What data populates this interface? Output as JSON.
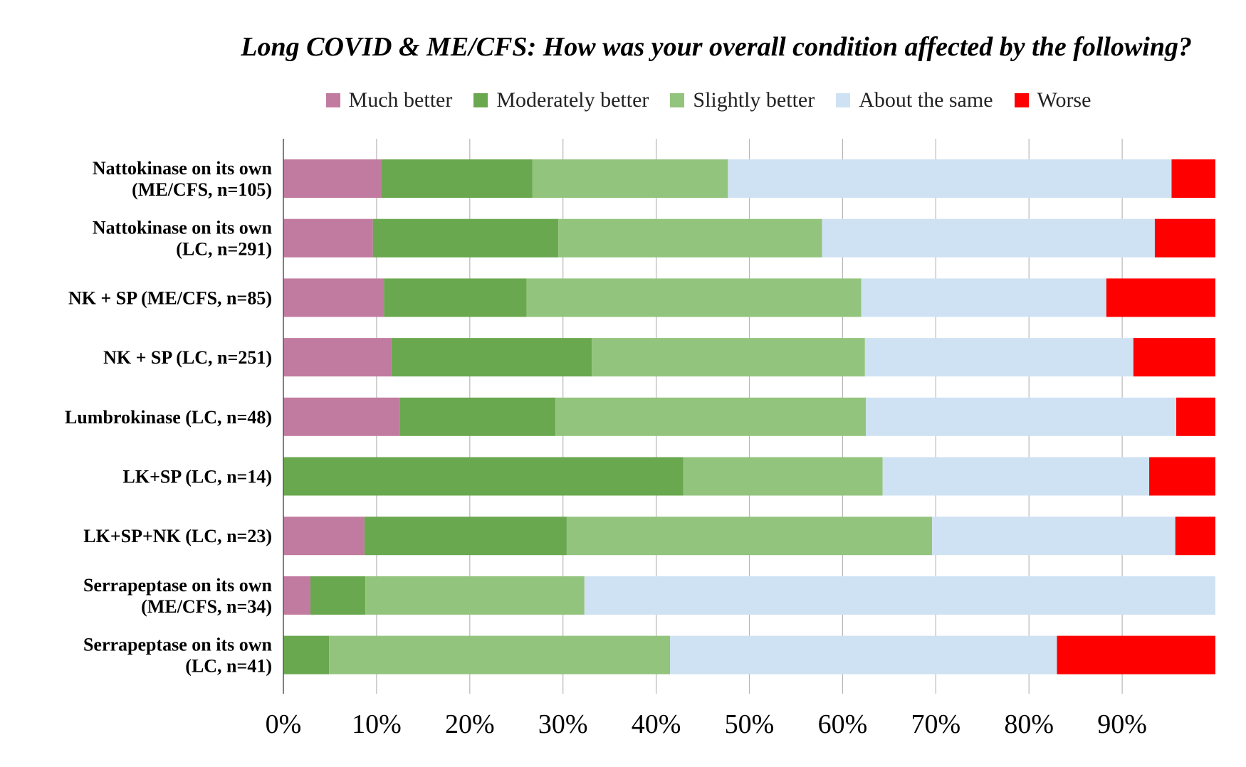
{
  "chart_data": {
    "type": "bar",
    "orientation": "horizontal",
    "stacked": true,
    "title": "Long COVID & ME/CFS: How was your overall condition affected by the following?",
    "xlabel": "",
    "ylabel": "",
    "xlim": [
      0,
      100
    ],
    "grid": true,
    "legend_position": "top",
    "x_ticks": [
      "0%",
      "10%",
      "20%",
      "30%",
      "40%",
      "50%",
      "60%",
      "70%",
      "80%",
      "90%"
    ],
    "categories": [
      "Nattokinase on its own|(ME/CFS, n=105)",
      "Nattokinase on its own|(LC, n=291)",
      "NK + SP (ME/CFS, n=85)",
      "NK + SP (LC, n=251)",
      "Lumbrokinase (LC, n=48)",
      "LK+SP (LC, n=14)",
      "LK+SP+NK (LC, n=23)",
      "Serrapeptase on its own|(ME/CFS, n=34)",
      "Serrapeptase on its own|(LC, n=41)"
    ],
    "series": [
      {
        "name": "Much better",
        "color": "#c27ba0",
        "values": [
          10.5,
          9.6,
          10.8,
          11.6,
          12.5,
          0,
          8.7,
          2.9,
          0
        ]
      },
      {
        "name": "Moderately better",
        "color": "#6aa84f",
        "values": [
          16.2,
          19.9,
          15.3,
          21.5,
          16.7,
          42.9,
          21.7,
          5.9,
          4.9
        ]
      },
      {
        "name": "Slightly better",
        "color": "#93c47d",
        "values": [
          21.0,
          28.3,
          35.9,
          29.3,
          33.3,
          21.4,
          39.2,
          23.5,
          36.6
        ]
      },
      {
        "name": "About the same",
        "color": "#cfe2f3",
        "values": [
          47.6,
          35.7,
          26.3,
          28.8,
          33.3,
          28.6,
          26.1,
          67.7,
          41.5
        ]
      },
      {
        "name": "Worse",
        "color": "#ff0000",
        "values": [
          4.7,
          6.5,
          11.7,
          8.8,
          4.2,
          7.1,
          4.3,
          0,
          17.0
        ]
      }
    ]
  }
}
